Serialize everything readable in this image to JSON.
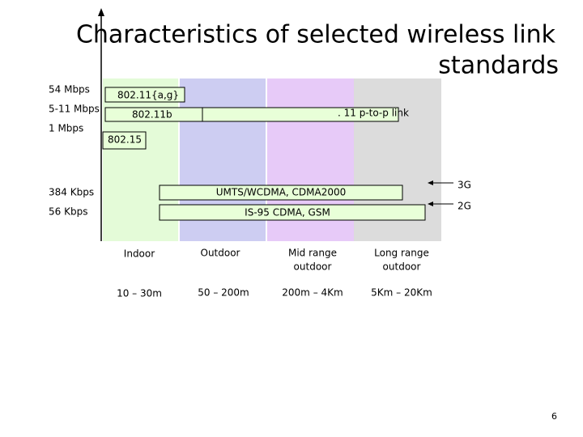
{
  "title": {
    "line1": "Characteristics of selected wireless link",
    "line2": "standards"
  },
  "rates": [
    "54 Mbps",
    "5-11 Mbps",
    "1 Mbps",
    "384 Kbps",
    "56 Kbps"
  ],
  "standards": [
    "802.11{a,g}",
    "802.11b",
    ". 11 p-to-p link",
    "802.15",
    "UMTS/WCDMA, CDMA2000",
    "IS-95 CDMA, GSM"
  ],
  "generations": [
    "3G",
    "2G"
  ],
  "regions": [
    {
      "name": [
        "Indoor"
      ],
      "range": "10 – 30m"
    },
    {
      "name": [
        "Outdoor"
      ],
      "range": "50 – 200m"
    },
    {
      "name": [
        "Mid range",
        "outdoor"
      ],
      "range": "200m – 4Km"
    },
    {
      "name": [
        "Long range",
        "outdoor"
      ],
      "range": "5Km – 20Km"
    }
  ],
  "page_number": "6"
}
